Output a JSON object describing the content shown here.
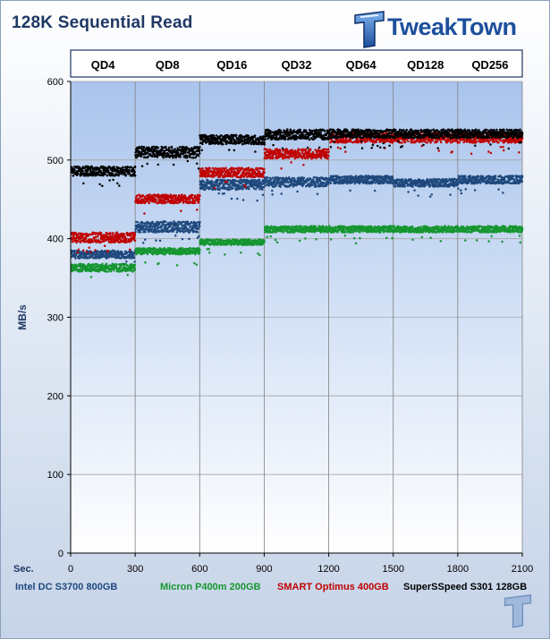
{
  "title": "128K Sequential Read",
  "logo_text": "TweakTown",
  "colors": {
    "intel": "#1f497d",
    "micron": "#169630",
    "smart": "#c00000",
    "superssd": "#000000",
    "axis_text": "#1f3864"
  },
  "chart_data": {
    "type": "scatter",
    "title": "128K Sequential Read",
    "xlabel": "Sec.",
    "ylabel": "MB/s",
    "xlim": [
      0,
      2100
    ],
    "ylim": [
      0,
      600
    ],
    "xticks": [
      0,
      300,
      600,
      900,
      1200,
      1500,
      1800,
      2100
    ],
    "yticks": [
      0,
      100,
      200,
      300,
      400,
      500,
      600
    ],
    "grid": true,
    "phases": [
      "QD4",
      "QD8",
      "QD16",
      "QD32",
      "QD64",
      "QD128",
      "QD256"
    ],
    "phase_boundaries": [
      0,
      300,
      600,
      900,
      1200,
      1500,
      1800,
      2100
    ],
    "series": [
      {
        "name": "Intel DC S3700 800GB",
        "color": "#1f497d",
        "levels": [
          380,
          416,
          468,
          472,
          474,
          470,
          474
        ],
        "bands": [
          [
            375,
            385
          ],
          [
            408,
            422
          ],
          [
            462,
            475
          ],
          [
            466,
            478
          ],
          [
            470,
            480
          ],
          [
            466,
            476
          ],
          [
            470,
            480
          ]
        ]
      },
      {
        "name": "Micron P400m 200GB",
        "color": "#169630",
        "levels": [
          365,
          385,
          396,
          412,
          412,
          412,
          412
        ],
        "bands": [
          [
            358,
            368
          ],
          [
            380,
            388
          ],
          [
            392,
            399
          ],
          [
            408,
            416
          ],
          [
            408,
            416
          ],
          [
            408,
            416
          ],
          [
            408,
            416
          ]
        ]
      },
      {
        "name": "SMART Optimus 400GB",
        "color": "#c00000",
        "levels": [
          400,
          450,
          484,
          508,
          528,
          528,
          528
        ],
        "bands": [
          [
            395,
            408
          ],
          [
            445,
            456
          ],
          [
            478,
            490
          ],
          [
            502,
            514
          ],
          [
            522,
            535
          ],
          [
            522,
            535
          ],
          [
            522,
            535
          ]
        ]
      },
      {
        "name": "SuperSSpeed S301 128GB",
        "color": "#000000",
        "levels": [
          486,
          510,
          526,
          532,
          533,
          533,
          533
        ],
        "bands": [
          [
            480,
            492
          ],
          [
            503,
            517
          ],
          [
            520,
            532
          ],
          [
            526,
            539
          ],
          [
            528,
            539
          ],
          [
            528,
            539
          ],
          [
            528,
            539
          ]
        ]
      }
    ]
  }
}
